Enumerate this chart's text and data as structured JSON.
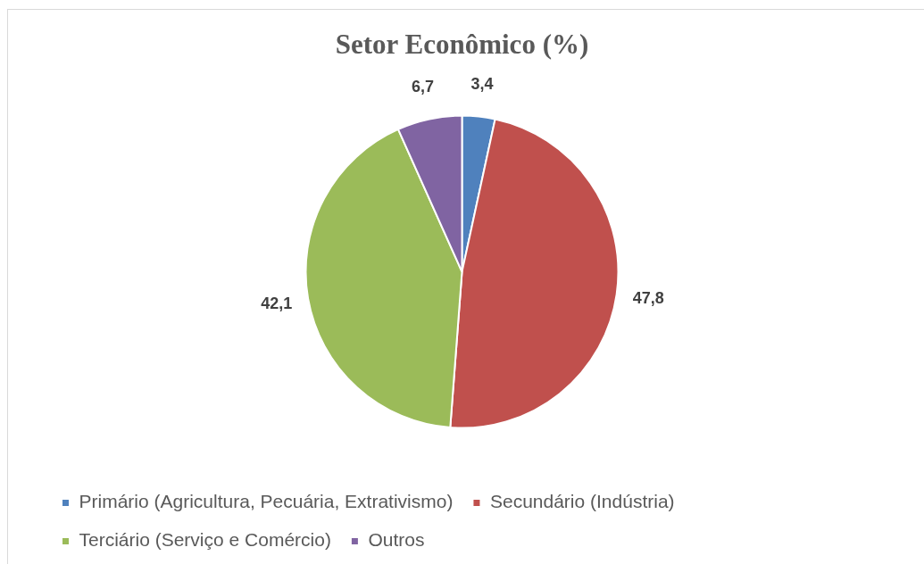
{
  "chart_data": {
    "type": "pie",
    "title": "Setor Econômico (%)",
    "categories": [
      "Primário (Agricultura, Pecuária, Extrativismo)",
      "Secundário (Indústria)",
      "Terciário (Serviço e Comércio)",
      "Outros"
    ],
    "values": [
      3.4,
      47.8,
      42.1,
      6.7
    ],
    "colors": [
      "#4f81bd",
      "#c0504d",
      "#9bbb59",
      "#8064a2"
    ],
    "value_labels": [
      "3,4",
      "47,8",
      "42,1",
      "6,7"
    ],
    "legend": "bottom"
  }
}
